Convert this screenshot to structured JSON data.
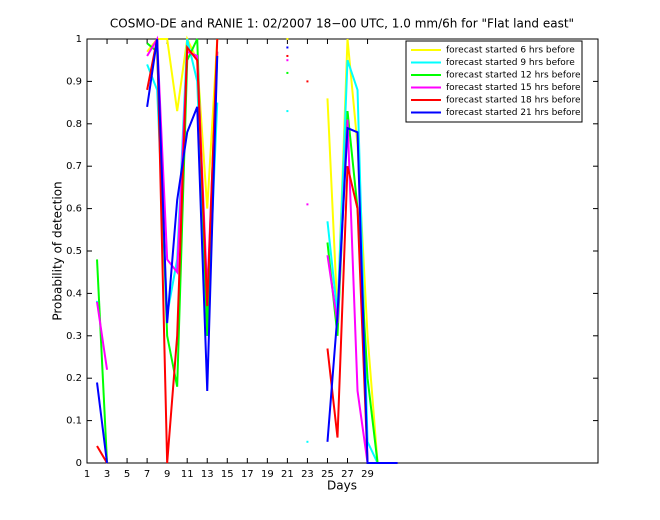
{
  "chart_data": {
    "type": "line",
    "title": "COSMO-DE and RANIE 1: 02/2007 18−00 UTC, 1.0 mm/6h for \"Flat land east\"",
    "x_label": "Days",
    "y_label": "Probability of detection",
    "x": [
      1,
      2,
      3,
      4,
      5,
      6,
      7,
      8,
      9,
      10,
      11,
      12,
      13,
      14,
      15,
      16,
      17,
      18,
      19,
      20,
      21,
      22,
      23,
      24,
      25,
      26,
      27,
      28,
      29,
      30,
      31,
      32
    ],
    "series": [
      {
        "name": "forecast started 6 hrs before",
        "color": "#ffff00",
        "values": [
          null,
          null,
          null,
          null,
          null,
          null,
          0.97,
          1.0,
          1.0,
          0.83,
          1.0,
          0.95,
          0.6,
          1.0,
          null,
          null,
          null,
          null,
          null,
          null,
          1.0,
          null,
          null,
          null,
          0.86,
          0.35,
          1.0,
          0.75,
          0.3,
          0,
          0,
          0
        ]
      },
      {
        "name": "forecast started 9 hrs before",
        "color": "#00ffff",
        "values": [
          null,
          0.38,
          null,
          null,
          null,
          null,
          0.94,
          0.88,
          0.35,
          0.48,
          1.0,
          0.9,
          0.3,
          0.85,
          null,
          null,
          null,
          null,
          null,
          null,
          0.83,
          null,
          0.05,
          null,
          0.57,
          0.35,
          0.95,
          0.88,
          0.05,
          0,
          0,
          0
        ]
      },
      {
        "name": "forecast started 12 hrs before",
        "color": "#00ff00",
        "values": [
          null,
          0.48,
          0.0,
          null,
          null,
          null,
          0.99,
          0.97,
          0.3,
          0.18,
          0.95,
          1.0,
          0.3,
          0.97,
          null,
          null,
          null,
          null,
          null,
          null,
          0.92,
          null,
          null,
          null,
          0.52,
          0.3,
          0.83,
          0.6,
          0.2,
          0,
          0,
          0
        ]
      },
      {
        "name": "forecast started 15 hrs before",
        "color": "#ff00ff",
        "values": [
          null,
          0.38,
          0.22,
          null,
          null,
          null,
          0.96,
          1.0,
          0.48,
          0.45,
          0.97,
          0.96,
          0.4,
          0.97,
          null,
          null,
          null,
          null,
          null,
          null,
          0.95,
          null,
          0.61,
          null,
          0.49,
          0.33,
          0.81,
          0.17,
          0,
          0,
          0,
          0
        ]
      },
      {
        "name": "forecast started 18 hrs before",
        "color": "#ff0000",
        "values": [
          null,
          0.04,
          0.0,
          null,
          null,
          null,
          0.88,
          1.0,
          0.0,
          0.3,
          0.98,
          0.95,
          0.37,
          1.0,
          null,
          null,
          null,
          null,
          null,
          null,
          0.96,
          null,
          0.9,
          null,
          0.27,
          0.06,
          0.7,
          0.6,
          0,
          0,
          0,
          0
        ]
      },
      {
        "name": "forecast started 21 hrs before",
        "color": "#0000ff",
        "values": [
          null,
          0.19,
          0.0,
          null,
          null,
          null,
          0.84,
          1.0,
          0.33,
          0.62,
          0.78,
          0.84,
          0.17,
          0.96,
          null,
          null,
          null,
          null,
          null,
          null,
          0.98,
          null,
          null,
          null,
          0.05,
          0.35,
          0.79,
          0.78,
          0,
          0,
          0,
          0
        ]
      }
    ],
    "xlim": [
      1,
      52
    ],
    "ylim": [
      0,
      1
    ],
    "xticks": [
      1,
      3,
      5,
      7,
      9,
      11,
      13,
      15,
      17,
      19,
      21,
      23,
      25,
      27,
      29
    ],
    "yticks": [
      0,
      0.1,
      0.2,
      0.3,
      0.4,
      0.5,
      0.6,
      0.7,
      0.8,
      0.9,
      1
    ],
    "legend": "upper right"
  }
}
